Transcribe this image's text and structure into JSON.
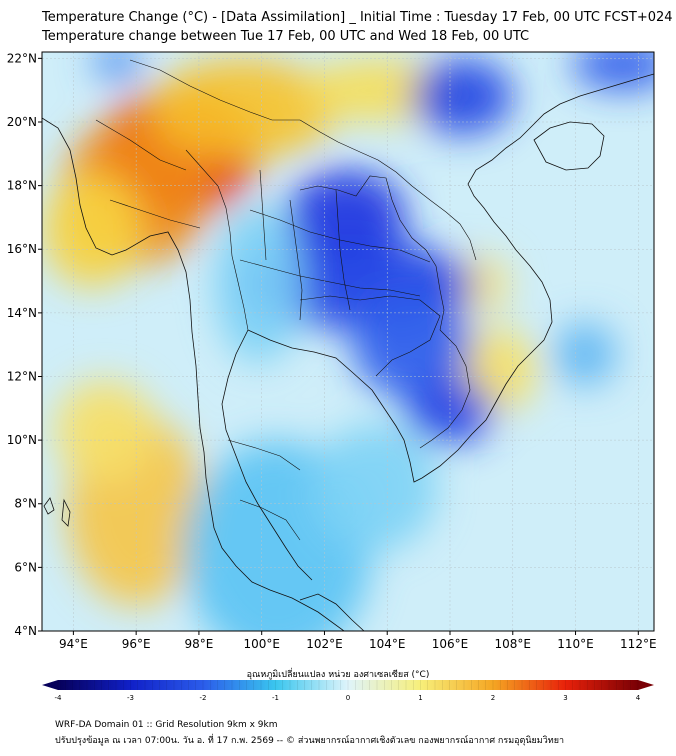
{
  "title": {
    "line1": "Temperature Change (°C) - [Data Assimilation] _ Initial Time : Tuesday 17 Feb, 00 UTC FCST+024",
    "line2": "Temperature change between Tue 17 Feb, 00 UTC and Wed 18 Feb, 00 UTC"
  },
  "map": {
    "lon_range": [
      93,
      112.5
    ],
    "lat_range": [
      4,
      22.2
    ],
    "x_ticks": [
      "94°E",
      "96°E",
      "98°E",
      "100°E",
      "102°E",
      "104°E",
      "106°E",
      "108°E",
      "110°E",
      "112°E"
    ],
    "x_tick_values": [
      94,
      96,
      98,
      100,
      102,
      104,
      106,
      108,
      110,
      112
    ],
    "y_ticks": [
      "22°N",
      "20°N",
      "18°N",
      "16°N",
      "14°N",
      "12°N",
      "10°N",
      "8°N",
      "6°N",
      "4°N"
    ],
    "y_tick_values": [
      22,
      20,
      18,
      16,
      14,
      12,
      10,
      8,
      6,
      4
    ],
    "field_base": "#cfeef9",
    "anomalies": [
      {
        "lon": 97.3,
        "lat": 19.0,
        "rx": 2.6,
        "ry": 2.0,
        "color": "#e8210a"
      },
      {
        "lon": 96.0,
        "lat": 17.8,
        "rx": 2.4,
        "ry": 2.3,
        "color": "#f08a19"
      },
      {
        "lon": 99.4,
        "lat": 20.4,
        "rx": 3.0,
        "ry": 1.6,
        "color": "#f6c22b"
      },
      {
        "lon": 103.8,
        "lat": 21.0,
        "rx": 2.5,
        "ry": 1.0,
        "color": "#f5dd5a"
      },
      {
        "lon": 94.6,
        "lat": 16.6,
        "rx": 1.6,
        "ry": 1.8,
        "color": "#f6d342"
      },
      {
        "lon": 96.0,
        "lat": 7.8,
        "rx": 2.2,
        "ry": 3.0,
        "color": "#f5c64a"
      },
      {
        "lon": 95.0,
        "lat": 10.3,
        "rx": 1.6,
        "ry": 1.6,
        "color": "#f6e06a"
      },
      {
        "lon": 107.5,
        "lat": 12.2,
        "rx": 1.3,
        "ry": 1.3,
        "color": "#f6df66"
      },
      {
        "lon": 106.9,
        "lat": 14.9,
        "rx": 1.0,
        "ry": 0.9,
        "color": "#f6e27a"
      },
      {
        "lon": 102.7,
        "lat": 17.0,
        "rx": 1.9,
        "ry": 1.5,
        "color": "#1c35e0"
      },
      {
        "lon": 103.0,
        "lat": 14.9,
        "rx": 3.8,
        "ry": 1.4,
        "color": "#1f3fe4"
      },
      {
        "lon": 104.8,
        "lat": 13.0,
        "rx": 1.9,
        "ry": 1.7,
        "color": "#2b5cea"
      },
      {
        "lon": 106.0,
        "lat": 10.9,
        "rx": 1.4,
        "ry": 1.0,
        "color": "#1f3fe4"
      },
      {
        "lon": 106.4,
        "lat": 20.8,
        "rx": 1.6,
        "ry": 1.2,
        "color": "#2347e4"
      },
      {
        "lon": 111.5,
        "lat": 21.8,
        "rx": 1.6,
        "ry": 0.8,
        "color": "#2c5aea"
      },
      {
        "lon": 95.4,
        "lat": 21.9,
        "rx": 0.8,
        "ry": 0.6,
        "color": "#4f8df0"
      },
      {
        "lon": 110.3,
        "lat": 12.7,
        "rx": 1.0,
        "ry": 1.0,
        "color": "#5fb5f2"
      },
      {
        "lon": 100.5,
        "lat": 6.5,
        "rx": 3.0,
        "ry": 3.5,
        "color": "#5cc3f3"
      },
      {
        "lon": 103.6,
        "lat": 8.5,
        "rx": 2.0,
        "ry": 2.0,
        "color": "#7ed2f5"
      },
      {
        "lon": 99.9,
        "lat": 14.9,
        "rx": 1.4,
        "ry": 2.5,
        "color": "#7cd0f5"
      }
    ],
    "coastline_color": "#111111"
  },
  "colorbar": {
    "title": "อุณหภูมิเปลี่ยนแปลง หน่วย องศาเซลเซียส (°C)",
    "min": -4,
    "max": 4,
    "tick_labels": [
      "-4",
      "-3",
      "-2",
      "-1",
      "0",
      "1",
      "2",
      "3",
      "4"
    ],
    "tick_values": [
      -4,
      -3,
      -2,
      -1,
      0,
      1,
      2,
      3,
      4
    ],
    "stops": [
      "#06005a",
      "#1020c8",
      "#2b5cea",
      "#3ac6ee",
      "#dff4fb",
      "#f7ef7a",
      "#f5a623",
      "#e8210a",
      "#7a0005"
    ]
  },
  "footer": {
    "line1": "WRF-DA Domain 01 :: Grid Resolution 9km x 9km",
    "line2": "ปรับปรุงข้อมูล ณ เวลา 07:00น. วัน อ. ที่ 17 ก.พ. 2569 -- © ส่วนพยากรณ์อากาศเชิงตัวเลข กองพยากรณ์อากาศ กรมอุตุนิยมวิทยา"
  }
}
